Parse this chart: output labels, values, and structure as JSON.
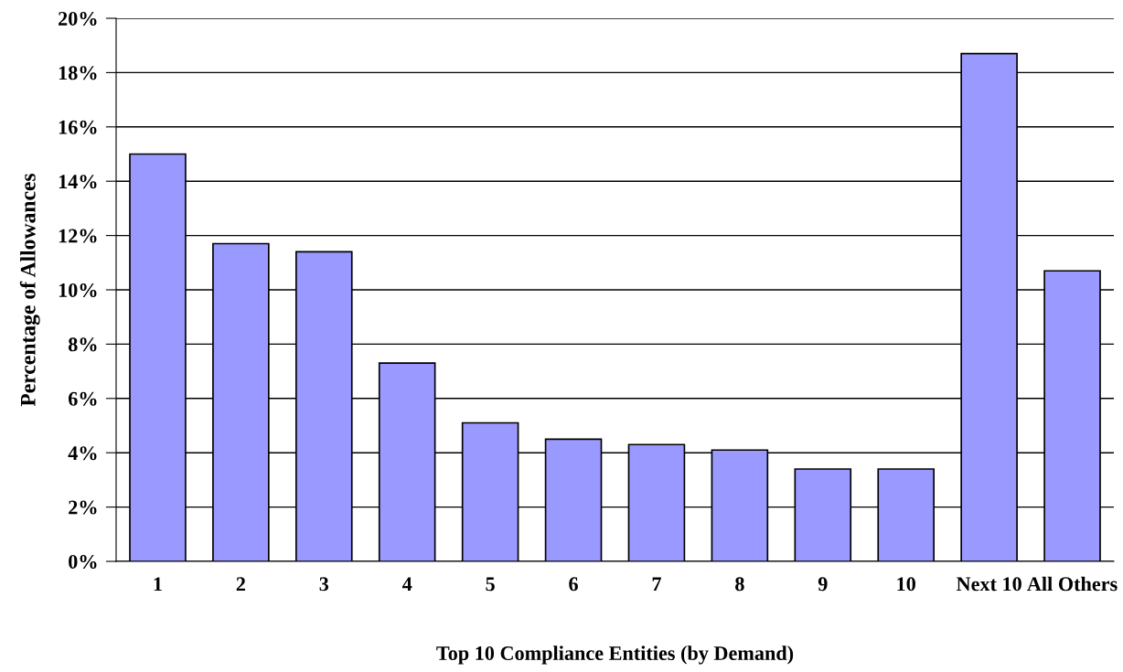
{
  "chart_data": {
    "type": "bar",
    "categories": [
      "1",
      "2",
      "3",
      "4",
      "5",
      "6",
      "7",
      "8",
      "9",
      "10",
      "Next 10",
      "All Others"
    ],
    "values": [
      15.0,
      11.7,
      11.4,
      7.3,
      5.1,
      4.5,
      4.3,
      4.1,
      3.4,
      3.4,
      18.7,
      10.7
    ],
    "color": "#9999ff",
    "xlabel": "Top 10 Compliance Entities (by Demand)",
    "ylabel": "Percentage of Allowances",
    "ylim": [
      0,
      20
    ],
    "yticks": [
      {
        "value": 0,
        "label": "0%"
      },
      {
        "value": 2,
        "label": "2%"
      },
      {
        "value": 4,
        "label": "4%"
      },
      {
        "value": 6,
        "label": "6%"
      },
      {
        "value": 8,
        "label": "8%"
      },
      {
        "value": 10,
        "label": "10%"
      },
      {
        "value": 12,
        "label": "12%"
      },
      {
        "value": 14,
        "label": "14%"
      },
      {
        "value": 16,
        "label": "16%"
      },
      {
        "value": 18,
        "label": "18%"
      },
      {
        "value": 20,
        "label": "20%"
      }
    ],
    "grid": "y"
  }
}
